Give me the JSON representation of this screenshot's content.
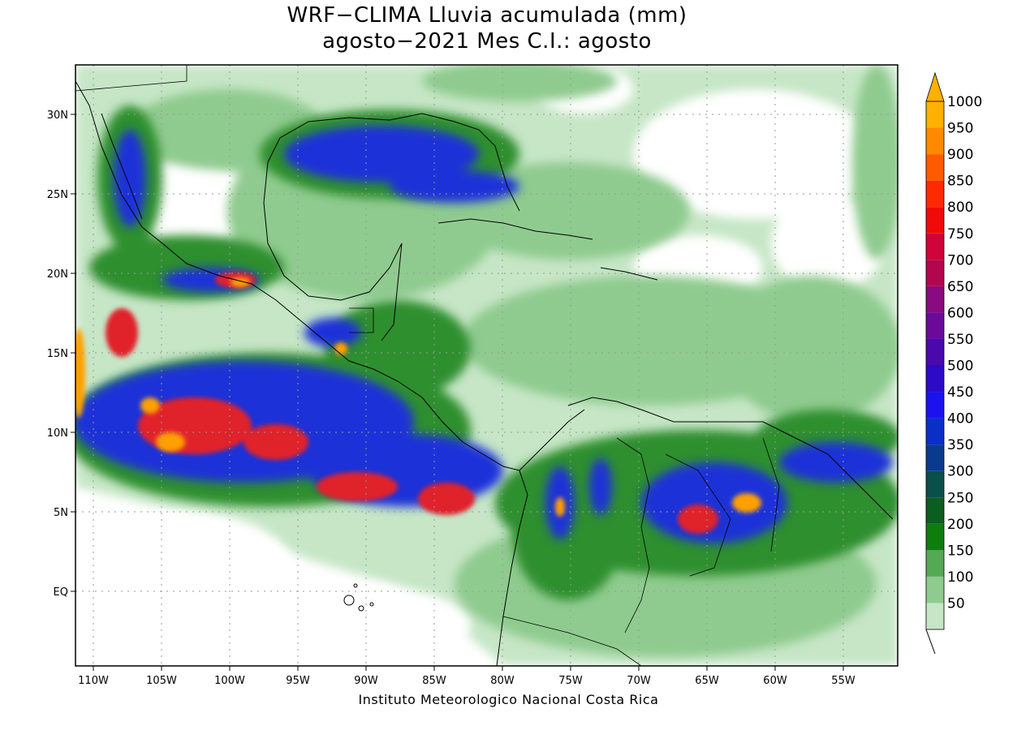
{
  "title_line1": "WRF−CLIMA Lluvia acumulada (mm)",
  "title_line2": "agosto−2021 Mes C.I.: agosto",
  "credit": "Instituto Meteorologico Nacional Costa Rica",
  "x_ticks": [
    "110W",
    "105W",
    "100W",
    "95W",
    "90W",
    "85W",
    "80W",
    "75W",
    "70W",
    "65W",
    "60W",
    "55W"
  ],
  "y_ticks": [
    "30N",
    "25N",
    "20N",
    "15N",
    "10N",
    "5N",
    "EQ"
  ],
  "legend": {
    "labels": [
      "50",
      "100",
      "150",
      "200",
      "250",
      "300",
      "350",
      "400",
      "450",
      "500",
      "550",
      "600",
      "650",
      "700",
      "750",
      "800",
      "850",
      "900",
      "950",
      "1000"
    ],
    "colors": [
      "#c6e6c6",
      "#8fcb8f",
      "#55a955",
      "#0e7d0e",
      "#0b5e20",
      "#0a4f4a",
      "#0a3a8f",
      "#0a2ec8",
      "#1c12ef",
      "#2d09c8",
      "#4a08ad",
      "#6a0a9a",
      "#8a0a80",
      "#b3064f",
      "#d0033a",
      "#f00a0a",
      "#ff2a00",
      "#ff5a00",
      "#ff8a00",
      "#ffb000"
    ],
    "max_color": "#ffb000"
  },
  "palette": {
    "light_green": "#c6e6c6",
    "mid_green": "#8fcb8f",
    "green": "#3e9a3e",
    "dark_green": "#0e7d0e",
    "blue": "#1c30d8",
    "red": "#e0202a",
    "orange": "#ffa000"
  }
}
